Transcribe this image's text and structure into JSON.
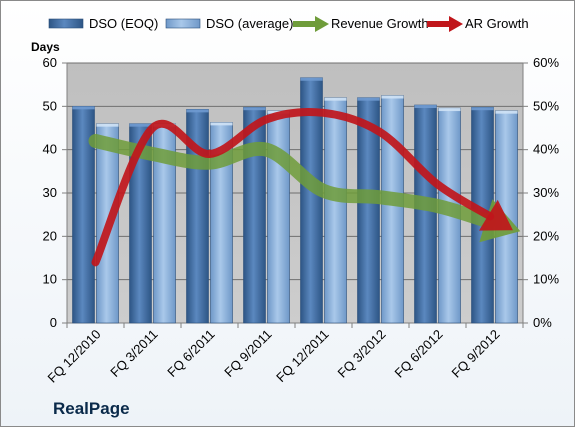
{
  "company": "RealPage",
  "chart_data": {
    "type": "bar",
    "categories": [
      "FQ 12/2010",
      "FQ 3/2011",
      "FQ 6/2011",
      "FQ 9/2011",
      "FQ 12/2011",
      "FQ 3/2012",
      "FQ 6/2012",
      "FQ 9/2012"
    ],
    "ylabel": "Days",
    "ylim": [
      0,
      60
    ],
    "y_ticks": [
      "0",
      "10",
      "20",
      "30",
      "40",
      "50",
      "60"
    ],
    "y2lim": [
      0,
      0.6
    ],
    "y2_ticks": [
      "0%",
      "10%",
      "20%",
      "30%",
      "40%",
      "50%",
      "60%"
    ],
    "grid": true,
    "legend_position": "top",
    "series": [
      {
        "name": "DSO (EOQ)",
        "kind": "bar",
        "color": "#3f6ea8",
        "values": [
          50,
          46,
          49.3,
          49.8,
          56.6,
          52,
          50.3,
          49.8
        ]
      },
      {
        "name": "DSO (average)",
        "kind": "bar",
        "color": "#8fb4dc",
        "values": [
          46,
          46,
          46.3,
          49,
          52,
          52.5,
          49.6,
          49
        ]
      },
      {
        "name": "Revenue Growth",
        "kind": "line-arrow",
        "axis": "secondary",
        "color": "#6f9c3a",
        "values": [
          0.42,
          0.39,
          0.37,
          0.4,
          0.305,
          0.29,
          0.27,
          0.23
        ]
      },
      {
        "name": "AR Growth",
        "kind": "line-arrow",
        "axis": "secondary",
        "color": "#c0161b",
        "values": [
          0.14,
          0.45,
          0.39,
          0.47,
          0.485,
          0.44,
          0.32,
          0.24
        ]
      }
    ]
  }
}
